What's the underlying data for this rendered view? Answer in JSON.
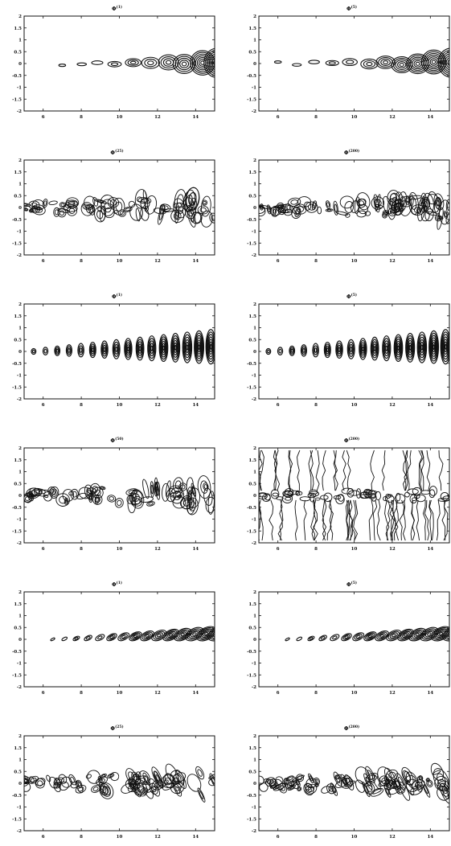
{
  "chart_data": [
    {
      "type": "contour",
      "title": "Φ",
      "superscript": "(1)",
      "xlim": [
        5,
        15
      ],
      "ylim": [
        -2,
        2
      ],
      "xticks": [
        6,
        8,
        10,
        12,
        14
      ],
      "yticks": [
        2,
        1.5,
        1,
        0.5,
        0,
        -0.5,
        -1,
        -1.5,
        -2
      ],
      "pattern": "sparse-growing",
      "features_x_start": 7,
      "density": 0.55
    },
    {
      "type": "contour",
      "title": "Φ",
      "superscript": "(5)",
      "xlim": [
        5,
        15
      ],
      "ylim": [
        -2,
        2
      ],
      "xticks": [
        6,
        8,
        10,
        12,
        14
      ],
      "yticks": [
        2,
        1.5,
        1,
        0.5,
        0,
        -0.5,
        -1,
        -1.5,
        -2
      ],
      "pattern": "sparse-growing",
      "features_x_start": 6,
      "density": 0.6
    },
    {
      "type": "contour",
      "title": "Φ",
      "superscript": "(25)",
      "xlim": [
        5,
        15
      ],
      "ylim": [
        -2,
        2
      ],
      "xticks": [
        6,
        8,
        10,
        12,
        14
      ],
      "yticks": [
        2,
        1.5,
        1,
        0.5,
        0,
        -0.5,
        -1,
        -1.5,
        -2
      ],
      "pattern": "noisy-band",
      "features_x_start": 5,
      "density": 0.8
    },
    {
      "type": "contour",
      "title": "Φ",
      "superscript": "(200)",
      "xlim": [
        5,
        15
      ],
      "ylim": [
        -2,
        2
      ],
      "xticks": [
        6,
        8,
        10,
        12,
        14
      ],
      "yticks": [
        2,
        1.5,
        1,
        0.5,
        0,
        -0.5,
        -1,
        -1.5,
        -2
      ],
      "pattern": "noisy-band",
      "features_x_start": 5,
      "density": 1.0
    },
    {
      "type": "contour",
      "title": "Φ",
      "superscript": "(1)",
      "xlim": [
        5,
        15
      ],
      "ylim": [
        -2,
        2
      ],
      "xticks": [
        6,
        8,
        10,
        12,
        14
      ],
      "yticks": [
        2,
        1.5,
        1,
        0.5,
        0,
        -0.5,
        -1,
        -1.5,
        -2
      ],
      "pattern": "oscillating-ellipses",
      "features_x_start": 5.5,
      "density": 0.7
    },
    {
      "type": "contour",
      "title": "Φ",
      "superscript": "(5)",
      "xlim": [
        5,
        15
      ],
      "ylim": [
        -2,
        2
      ],
      "xticks": [
        6,
        8,
        10,
        12,
        14
      ],
      "yticks": [
        2,
        1.5,
        1,
        0.5,
        0,
        -0.5,
        -1,
        -1.5,
        -2
      ],
      "pattern": "oscillating-ellipses",
      "features_x_start": 5.5,
      "density": 0.75
    },
    {
      "type": "contour",
      "title": "Φ",
      "superscript": "(50)",
      "xlim": [
        5,
        15
      ],
      "ylim": [
        -2,
        2
      ],
      "xticks": [
        6,
        8,
        10,
        12,
        14
      ],
      "yticks": [
        2,
        1.5,
        1,
        0.5,
        0,
        -0.5,
        -1,
        -1.5,
        -2
      ],
      "pattern": "dense-band",
      "features_x_start": 5,
      "density": 0.8
    },
    {
      "type": "contour",
      "title": "Φ",
      "superscript": "(200)",
      "xlim": [
        5,
        15
      ],
      "ylim": [
        -2,
        2
      ],
      "xticks": [
        6,
        8,
        10,
        12,
        14
      ],
      "yticks": [
        2,
        1.5,
        1,
        0.5,
        0,
        -0.5,
        -1,
        -1.5,
        -2
      ],
      "pattern": "vertical-streaks",
      "features_x_start": 5,
      "density": 1.0
    },
    {
      "type": "contour",
      "title": "Φ",
      "superscript": "(1)",
      "xlim": [
        5,
        15
      ],
      "ylim": [
        -2,
        2
      ],
      "xticks": [
        6,
        8,
        10,
        12,
        14
      ],
      "yticks": [
        2,
        1.5,
        1,
        0.5,
        0,
        -0.5,
        -1,
        -1.5,
        -2
      ],
      "pattern": "tilted-ellipses",
      "features_x_start": 6.5,
      "density": 0.7
    },
    {
      "type": "contour",
      "title": "Φ",
      "superscript": "(5)",
      "xlim": [
        5,
        15
      ],
      "ylim": [
        -2,
        2
      ],
      "xticks": [
        6,
        8,
        10,
        12,
        14
      ],
      "yticks": [
        2,
        1.5,
        1,
        0.5,
        0,
        -0.5,
        -1,
        -1.5,
        -2
      ],
      "pattern": "tilted-ellipses",
      "features_x_start": 6.5,
      "density": 0.75
    },
    {
      "type": "contour",
      "title": "Φ",
      "superscript": "(25)",
      "xlim": [
        5,
        15
      ],
      "ylim": [
        -2,
        2
      ],
      "xticks": [
        6,
        8,
        10,
        12,
        14
      ],
      "yticks": [
        2,
        1.5,
        1,
        0.5,
        0,
        -0.5,
        -1,
        -1.5,
        -2
      ],
      "pattern": "tilted-dense",
      "features_x_start": 5,
      "density": 0.85
    },
    {
      "type": "contour",
      "title": "Φ",
      "superscript": "(200)",
      "xlim": [
        5,
        15
      ],
      "ylim": [
        -2,
        2
      ],
      "xticks": [
        6,
        8,
        10,
        12,
        14
      ],
      "yticks": [
        2,
        1.5,
        1,
        0.5,
        0,
        -0.5,
        -1,
        -1.5,
        -2
      ],
      "pattern": "tilted-dense",
      "features_x_start": 5,
      "density": 1.0
    }
  ],
  "colors": {
    "ink": "#111111",
    "background": "#ffffff"
  }
}
